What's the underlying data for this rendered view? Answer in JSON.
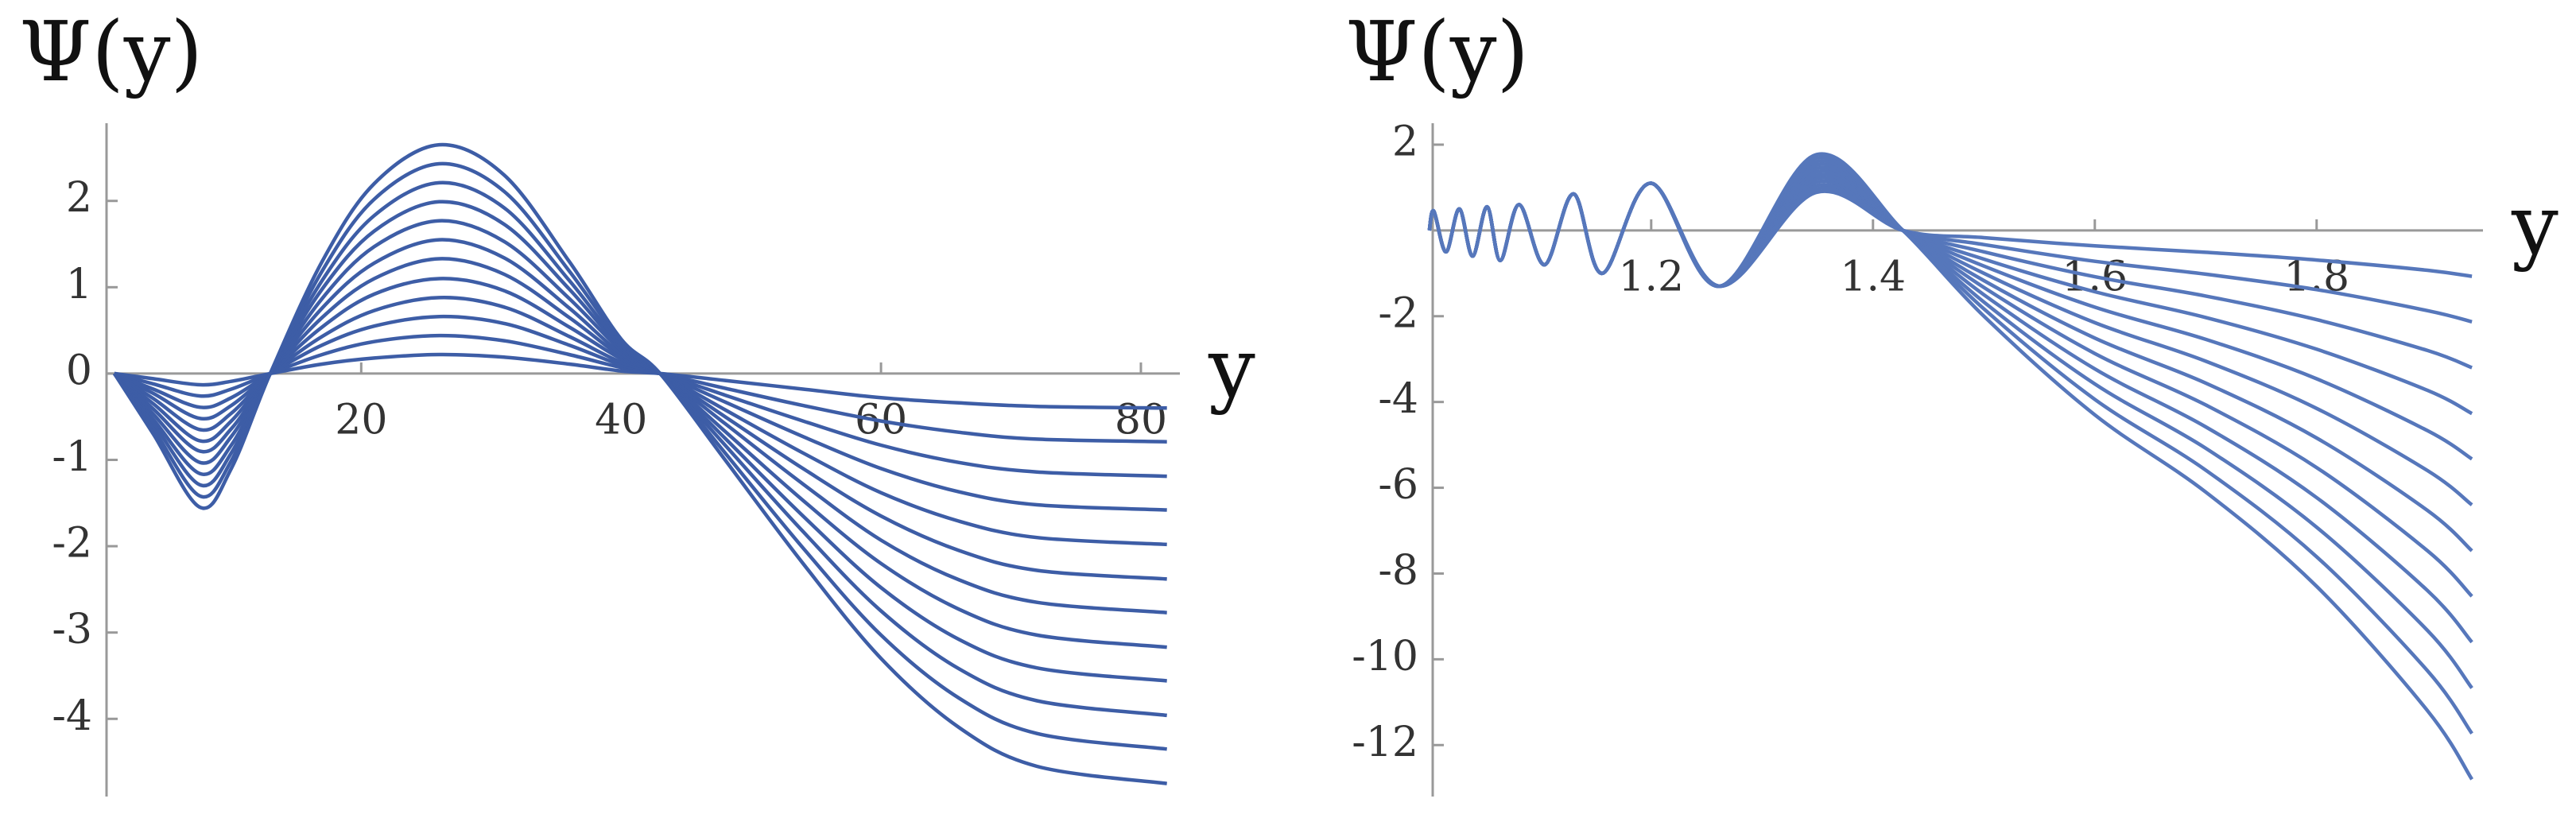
{
  "chart_data": [
    {
      "type": "line",
      "y_label": "Ψ(y)",
      "x_label": "y",
      "color": "#3d5da6",
      "x": [
        1,
        4,
        7.6,
        10,
        13,
        17,
        21,
        26,
        31,
        36,
        40,
        43,
        48,
        54,
        60,
        66,
        72,
        82
      ],
      "xlim": [
        0.4,
        83
      ],
      "ylim": [
        -4.9,
        2.9
      ],
      "xticks": [
        20,
        40,
        60,
        80
      ],
      "yticks": [
        -4,
        -3,
        -2,
        -1,
        0,
        1,
        2
      ],
      "series": [
        {
          "values": [
            0,
            -0.06,
            -0.13,
            -0.09,
            0,
            0.11,
            0.18,
            0.22,
            0.19,
            0.11,
            0.03,
            0,
            -0.08,
            -0.18,
            -0.28,
            -0.34,
            -0.38,
            -0.4
          ]
        },
        {
          "values": [
            0,
            -0.12,
            -0.26,
            -0.18,
            0,
            0.22,
            0.37,
            0.44,
            0.38,
            0.22,
            0.07,
            0,
            -0.17,
            -0.37,
            -0.55,
            -0.68,
            -0.76,
            -0.79
          ]
        },
        {
          "values": [
            0,
            -0.18,
            -0.39,
            -0.28,
            0,
            0.33,
            0.55,
            0.66,
            0.58,
            0.33,
            0.1,
            0,
            -0.25,
            -0.55,
            -0.83,
            -1.03,
            -1.14,
            -1.19
          ]
        },
        {
          "values": [
            0,
            -0.23,
            -0.52,
            -0.37,
            0,
            0.43,
            0.73,
            0.88,
            0.77,
            0.43,
            0.13,
            0,
            -0.33,
            -0.73,
            -1.1,
            -1.37,
            -1.52,
            -1.58
          ]
        },
        {
          "values": [
            0,
            -0.29,
            -0.65,
            -0.46,
            0,
            0.54,
            0.92,
            1.1,
            0.96,
            0.54,
            0.17,
            0,
            -0.42,
            -0.92,
            -1.38,
            -1.71,
            -1.9,
            -1.98
          ]
        },
        {
          "values": [
            0,
            -0.35,
            -0.78,
            -0.55,
            0,
            0.65,
            1.1,
            1.33,
            1.15,
            0.65,
            0.2,
            0,
            -0.5,
            -1.1,
            -1.65,
            -2.05,
            -2.28,
            -2.38
          ]
        },
        {
          "values": [
            0,
            -0.41,
            -0.9,
            -0.64,
            0,
            0.76,
            1.28,
            1.55,
            1.34,
            0.76,
            0.23,
            0,
            -0.58,
            -1.28,
            -1.93,
            -2.39,
            -2.65,
            -2.77
          ]
        },
        {
          "values": [
            0,
            -0.47,
            -1.03,
            -0.73,
            0,
            0.87,
            1.47,
            1.77,
            1.53,
            0.87,
            0.27,
            0,
            -0.67,
            -1.47,
            -2.2,
            -2.73,
            -3.03,
            -3.17
          ]
        },
        {
          "values": [
            0,
            -0.53,
            -1.16,
            -0.83,
            0,
            0.98,
            1.65,
            1.99,
            1.73,
            0.98,
            0.3,
            0,
            -0.75,
            -1.65,
            -2.48,
            -3.08,
            -3.41,
            -3.56
          ]
        },
        {
          "values": [
            0,
            -0.58,
            -1.29,
            -0.92,
            0,
            1.08,
            1.83,
            2.21,
            1.92,
            1.08,
            0.33,
            0,
            -0.83,
            -1.83,
            -2.75,
            -3.42,
            -3.79,
            -3.96
          ]
        },
        {
          "values": [
            0,
            -0.64,
            -1.42,
            -1.01,
            0,
            1.19,
            2.02,
            2.43,
            2.11,
            1.19,
            0.37,
            0,
            -0.92,
            -2.02,
            -3.03,
            -3.76,
            -4.17,
            -4.35
          ]
        },
        {
          "values": [
            0,
            -0.7,
            -1.55,
            -1.1,
            0,
            1.3,
            2.2,
            2.65,
            2.3,
            1.3,
            0.4,
            0,
            -1.0,
            -2.2,
            -3.3,
            -4.1,
            -4.55,
            -4.75
          ]
        }
      ]
    },
    {
      "type": "line",
      "y_label": "Ψ(y)",
      "x_label": "y",
      "color": "#5677bb",
      "x": [
        1.0,
        1.004,
        1.015,
        1.027,
        1.039,
        1.052,
        1.064,
        1.081,
        1.104,
        1.13,
        1.156,
        1.2,
        1.262,
        1.348,
        1.427,
        1.5,
        1.6,
        1.7,
        1.8,
        1.9,
        1.94
      ],
      "xlim": [
        1.003,
        1.95
      ],
      "ylim": [
        -13.2,
        2.5
      ],
      "xticks": [
        1.2,
        1.4,
        1.6,
        1.8
      ],
      "yticks": [
        2,
        -2,
        -4,
        -6,
        -8,
        -10,
        -12
      ],
      "series": [
        {
          "values": [
            0,
            0.45,
            -0.5,
            0.5,
            -0.6,
            0.55,
            -0.7,
            0.6,
            -0.8,
            0.85,
            -1.0,
            1.1,
            -1.3,
            0.88,
            0,
            -0.17,
            -0.36,
            -0.51,
            -0.69,
            -0.93,
            -1.07
          ]
        },
        {
          "values": [
            0,
            0.45,
            -0.5,
            0.5,
            -0.6,
            0.55,
            -0.7,
            0.6,
            -0.8,
            0.85,
            -1.0,
            1.1,
            -1.3,
            0.96,
            0,
            -0.33,
            -0.72,
            -1.02,
            -1.38,
            -1.87,
            -2.13
          ]
        },
        {
          "values": [
            0,
            0.45,
            -0.5,
            0.5,
            -0.6,
            0.55,
            -0.7,
            0.6,
            -0.8,
            0.85,
            -1.0,
            1.1,
            -1.3,
            1.04,
            0,
            -0.5,
            -1.08,
            -1.53,
            -2.08,
            -2.8,
            -3.2
          ]
        },
        {
          "values": [
            0,
            0.45,
            -0.5,
            0.5,
            -0.6,
            0.55,
            -0.7,
            0.6,
            -0.8,
            0.85,
            -1.0,
            1.1,
            -1.3,
            1.12,
            0,
            -0.67,
            -1.43,
            -2.03,
            -2.77,
            -3.73,
            -4.27
          ]
        },
        {
          "values": [
            0,
            0.45,
            -0.5,
            0.5,
            -0.6,
            0.55,
            -0.7,
            0.6,
            -0.8,
            0.85,
            -1.0,
            1.1,
            -1.3,
            1.2,
            0,
            -0.83,
            -1.79,
            -2.54,
            -3.46,
            -4.67,
            -5.33
          ]
        },
        {
          "values": [
            0,
            0.45,
            -0.5,
            0.5,
            -0.6,
            0.55,
            -0.7,
            0.6,
            -0.8,
            0.85,
            -1.0,
            1.1,
            -1.3,
            1.28,
            0,
            -1.0,
            -2.15,
            -3.05,
            -4.15,
            -5.6,
            -6.4
          ]
        },
        {
          "values": [
            0,
            0.45,
            -0.5,
            0.5,
            -0.6,
            0.55,
            -0.7,
            0.6,
            -0.8,
            0.85,
            -1.0,
            1.1,
            -1.3,
            1.36,
            0,
            -1.17,
            -2.51,
            -3.56,
            -4.84,
            -6.53,
            -7.47
          ]
        },
        {
          "values": [
            0,
            0.45,
            -0.5,
            0.5,
            -0.6,
            0.55,
            -0.7,
            0.6,
            -0.8,
            0.85,
            -1.0,
            1.1,
            -1.3,
            1.44,
            0,
            -1.33,
            -2.87,
            -4.07,
            -5.53,
            -7.47,
            -8.53
          ]
        },
        {
          "values": [
            0,
            0.45,
            -0.5,
            0.5,
            -0.6,
            0.55,
            -0.7,
            0.6,
            -0.8,
            0.85,
            -1.0,
            1.1,
            -1.3,
            1.52,
            0,
            -1.5,
            -3.23,
            -4.58,
            -6.23,
            -8.4,
            -9.6
          ]
        },
        {
          "values": [
            0,
            0.45,
            -0.5,
            0.5,
            -0.6,
            0.55,
            -0.7,
            0.6,
            -0.8,
            0.85,
            -1.0,
            1.1,
            -1.3,
            1.6,
            0,
            -1.67,
            -3.58,
            -5.08,
            -6.92,
            -9.33,
            -10.67
          ]
        },
        {
          "values": [
            0,
            0.45,
            -0.5,
            0.5,
            -0.6,
            0.55,
            -0.7,
            0.6,
            -0.8,
            0.85,
            -1.0,
            1.1,
            -1.3,
            1.68,
            0,
            -1.83,
            -3.94,
            -5.59,
            -7.61,
            -10.27,
            -11.73
          ]
        },
        {
          "values": [
            0,
            0.45,
            -0.5,
            0.5,
            -0.6,
            0.55,
            -0.7,
            0.6,
            -0.8,
            0.85,
            -1.0,
            1.1,
            -1.3,
            1.76,
            0,
            -2.0,
            -4.3,
            -6.1,
            -8.3,
            -11.2,
            -12.8
          ]
        }
      ]
    }
  ]
}
